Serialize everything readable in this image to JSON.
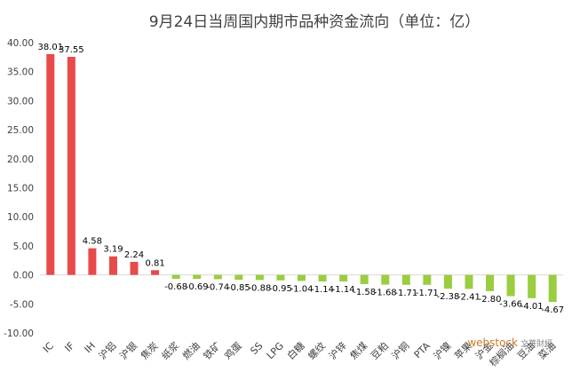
{
  "chart_data": {
    "type": "bar",
    "title": "9月24日当周国内期市品种资金流向（单位：亿）",
    "categories": [
      "IC",
      "IF",
      "IH",
      "沪铝",
      "沪银",
      "焦炭",
      "纸浆",
      "燃油",
      "铁矿",
      "鸡蛋",
      "SS",
      "LPG",
      "白糖",
      "螺纹",
      "沪锌",
      "焦煤",
      "豆粕",
      "沪铜",
      "PTA",
      "沪镍",
      "苹果",
      "沪金",
      "棕榈油",
      "豆油",
      "菜油"
    ],
    "values": [
      38.01,
      37.55,
      4.58,
      3.19,
      2.24,
      0.81,
      -0.68,
      -0.69,
      -0.74,
      -0.85,
      -0.88,
      -0.95,
      -1.04,
      -1.14,
      -1.14,
      -1.58,
      -1.68,
      -1.71,
      -1.71,
      -2.38,
      -2.41,
      -2.8,
      -3.66,
      -4.01,
      -4.67
    ],
    "data_labels": [
      "38.01",
      "37.55",
      "4.58",
      "3.19",
      "2.24",
      "0.81",
      "-0.68",
      "-0.69",
      "-0.74",
      "-0.85",
      "-0.88",
      "-0.95",
      "-1.04",
      "-1.14",
      "-1.14",
      "-1.58",
      "-1.68",
      "-1.71",
      "-1.71",
      "-2.38",
      "-2.41",
      "-2.80",
      "-3.66",
      "-4.01",
      "-4.67"
    ],
    "y_ticks": [
      "-10.00",
      "-5.00",
      "0.00",
      "5.00",
      "10.00",
      "15.00",
      "20.00",
      "25.00",
      "30.00",
      "35.00",
      "40.00"
    ],
    "ylim": [
      -10,
      40
    ],
    "positive_color": "#e84a4a",
    "negative_color": "#9acd40",
    "grid": false,
    "legend": "none"
  },
  "watermark": {
    "brand": "webstock",
    "sub": "文華財經"
  }
}
